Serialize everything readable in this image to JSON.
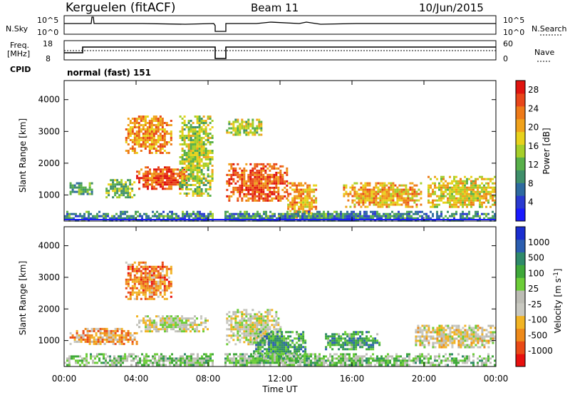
{
  "header": {
    "station": "Kerguelen (fitACF)",
    "beam": "Beam 11",
    "date": "10/Jun/2015"
  },
  "noise_panel": {
    "left_label": "N.Sky",
    "right_label": "N.Search",
    "left_ticks": [
      "10^5",
      "10^0"
    ],
    "right_ticks": [
      "10^5",
      "10^0"
    ]
  },
  "freq_panel": {
    "left_label_1": "Freq.",
    "left_label_2": "[MHz]",
    "right_label": "Nave",
    "left_ticks": [
      "18",
      "8"
    ],
    "right_ticks": [
      "60",
      "0"
    ]
  },
  "cpid": {
    "label": "CPID",
    "value": "normal (fast) 151"
  },
  "colors": {
    "power": [
      "#1a1aff",
      "#2a3ad0",
      "#2e6aa0",
      "#3f8f6a",
      "#58b04a",
      "#a6cf2a",
      "#e8d21c",
      "#f0a21c",
      "#ee7a18",
      "#e8461a",
      "#e0140f"
    ],
    "velocity": [
      "#e8100e",
      "#ea4a16",
      "#ee8a1a",
      "#f2b424",
      "#c8c8c0",
      "#bcbcb4",
      "#6ccd38",
      "#3fa83a",
      "#2f8a6a",
      "#2b5eb0",
      "#1a2ed0"
    ]
  },
  "chart_data": [
    {
      "type": "heatmap",
      "title": "Power",
      "xlabel": "Time UT",
      "ylabel": "Slant Range [km]",
      "x_ticks": [
        "00:00",
        "04:00",
        "08:00",
        "12:00",
        "16:00",
        "20:00",
        "00:00"
      ],
      "xlim_hours": [
        0,
        24
      ],
      "ylim": [
        180,
        4600
      ],
      "y_ticks": [
        1000,
        2000,
        3000,
        4000
      ],
      "colorbar": {
        "label": "Power [dB]",
        "range": [
          0,
          30
        ],
        "ticks": [
          4,
          8,
          12,
          16,
          20,
          24,
          28
        ]
      },
      "data_gap_hours": [
        8.3,
        8.9
      ],
      "regions": [
        {
          "t0": 3.4,
          "t1": 5.9,
          "r0": 2300,
          "r1": 3500,
          "level": 0.72
        },
        {
          "t0": 4.0,
          "t1": 6.9,
          "r0": 1200,
          "r1": 1900,
          "level": 0.85
        },
        {
          "t0": 2.3,
          "t1": 3.9,
          "r0": 950,
          "r1": 1500,
          "level": 0.45
        },
        {
          "t0": 0.3,
          "t1": 1.5,
          "r0": 1000,
          "r1": 1400,
          "level": 0.35
        },
        {
          "t0": 6.4,
          "t1": 8.2,
          "r0": 1000,
          "r1": 3500,
          "level": 0.5
        },
        {
          "t0": 9.0,
          "t1": 12.4,
          "r0": 800,
          "r1": 2000,
          "level": 0.82
        },
        {
          "t0": 9.0,
          "t1": 11.0,
          "r0": 2900,
          "r1": 3400,
          "level": 0.5
        },
        {
          "t0": 12.4,
          "t1": 14.0,
          "r0": 300,
          "r1": 1400,
          "level": 0.7
        },
        {
          "t0": 15.5,
          "t1": 19.8,
          "r0": 600,
          "r1": 1400,
          "level": 0.68
        },
        {
          "t0": 20.2,
          "t1": 24.0,
          "r0": 600,
          "r1": 1600,
          "level": 0.6
        },
        {
          "t0": 0.0,
          "t1": 24.0,
          "r0": 200,
          "r1": 500,
          "level": 0.3
        }
      ]
    },
    {
      "type": "heatmap",
      "title": "Velocity",
      "xlabel": "Time UT",
      "ylabel": "Slant Range [km]",
      "x_ticks": [
        "00:00",
        "04:00",
        "08:00",
        "12:00",
        "16:00",
        "20:00",
        "00:00"
      ],
      "xlim_hours": [
        0,
        24
      ],
      "ylim": [
        180,
        4600
      ],
      "y_ticks": [
        1000,
        2000,
        3000,
        4000
      ],
      "colorbar": {
        "label": "Velocity [m s^-1]",
        "tick_labels": [
          "1000",
          "500",
          "100",
          "25",
          "-25",
          "-100",
          "-500",
          "-1000"
        ]
      },
      "data_gap_hours": [
        8.3,
        8.9
      ],
      "regions": [
        {
          "t0": 3.4,
          "t1": 5.9,
          "r0": 2300,
          "r1": 3500,
          "level": 0.22
        },
        {
          "t0": 4.0,
          "t1": 8.0,
          "r0": 1300,
          "r1": 1800,
          "level": 0.45
        },
        {
          "t0": 0.3,
          "t1": 4.0,
          "r0": 900,
          "r1": 1400,
          "level": 0.3
        },
        {
          "t0": 9.0,
          "t1": 12.0,
          "r0": 900,
          "r1": 2000,
          "level": 0.45
        },
        {
          "t0": 10.5,
          "t1": 13.4,
          "r0": 300,
          "r1": 1300,
          "level": 0.7
        },
        {
          "t0": 14.5,
          "t1": 17.5,
          "r0": 700,
          "r1": 1300,
          "level": 0.7
        },
        {
          "t0": 19.5,
          "t1": 24.0,
          "r0": 800,
          "r1": 1500,
          "level": 0.42
        },
        {
          "t0": 0.0,
          "t1": 24.0,
          "r0": 200,
          "r1": 600,
          "level": 0.58
        }
      ]
    }
  ]
}
